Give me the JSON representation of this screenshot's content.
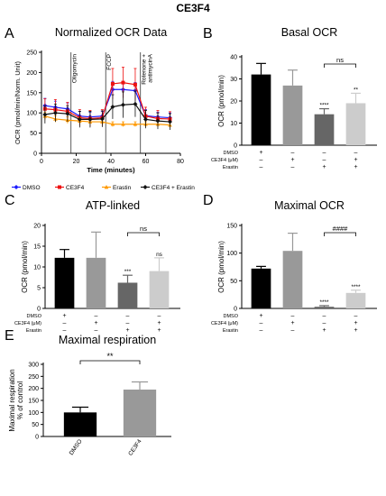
{
  "figure_title": "CE3F4",
  "colors": {
    "dmso": "#1a1aff",
    "ce3f4": "#ee1111",
    "erastin": "#ff9900",
    "combo": "#111111",
    "bar_dmso": "#000000",
    "bar_ce3f4": "#999999",
    "bar_erastin": "#666666",
    "bar_combo": "#cccccc"
  },
  "chart_data": [
    {
      "id": "A",
      "panel_letter": "A",
      "type": "line",
      "title": "Normalized OCR Data",
      "xlabel": "Time (minutes)",
      "ylabel": "OCR (pmol/min/Norm. Unit)",
      "xlim": [
        0,
        80
      ],
      "ylim": [
        0,
        250
      ],
      "xticks": [
        0,
        20,
        40,
        60,
        80
      ],
      "yticks": [
        0,
        50,
        100,
        150,
        200,
        250
      ],
      "injections": [
        {
          "label": "Oligomycin",
          "x": 17
        },
        {
          "label": "FCCP",
          "x": 37
        },
        {
          "label": "Rotenone + antimycinA",
          "x": 57
        }
      ],
      "x": [
        2,
        8,
        15,
        22,
        28,
        35,
        41,
        47,
        54,
        60,
        67,
        74
      ],
      "series": [
        {
          "name": "DMSO",
          "color_key": "dmso",
          "marker": "diamond",
          "values": [
            118,
            114,
            110,
            92,
            90,
            92,
            158,
            158,
            155,
            93,
            90,
            88
          ],
          "errors": [
            18,
            15,
            15,
            12,
            12,
            12,
            20,
            20,
            20,
            15,
            12,
            12
          ]
        },
        {
          "name": "CE3F4",
          "color_key": "ce3f4",
          "marker": "square",
          "values": [
            110,
            108,
            104,
            88,
            86,
            88,
            172,
            175,
            170,
            92,
            86,
            85
          ],
          "errors": [
            25,
            25,
            22,
            20,
            20,
            20,
            38,
            38,
            40,
            22,
            20,
            18
          ]
        },
        {
          "name": "Erastin",
          "color_key": "erastin",
          "marker": "triangle",
          "values": [
            92,
            85,
            82,
            80,
            78,
            78,
            72,
            72,
            72,
            72,
            72,
            70
          ],
          "errors": [
            10,
            8,
            8,
            8,
            8,
            8,
            6,
            6,
            6,
            6,
            6,
            6
          ]
        },
        {
          "name": "CE3F4 + Erastin",
          "color_key": "combo",
          "marker": "diamond",
          "values": [
            96,
            100,
            98,
            84,
            84,
            85,
            115,
            120,
            122,
            84,
            80,
            78
          ],
          "errors": [
            22,
            22,
            20,
            20,
            20,
            20,
            30,
            32,
            32,
            22,
            20,
            20
          ]
        }
      ]
    },
    {
      "id": "B",
      "panel_letter": "B",
      "type": "bar",
      "title": "Basal OCR",
      "ylabel": "OCR (pmol/min)",
      "ylim": [
        0,
        40
      ],
      "yticks": [
        0,
        10,
        20,
        30,
        40
      ],
      "categories": [
        "DMSO",
        "CE3F4",
        "Erastin",
        "CE3F4 + Erastin"
      ],
      "values": [
        32,
        27,
        14,
        19
      ],
      "errors": [
        5,
        7,
        2.5,
        4.5
      ],
      "bar_color_keys": [
        "bar_dmso",
        "bar_ce3f4",
        "bar_erastin",
        "bar_combo"
      ],
      "annotations": [
        "",
        "",
        "****",
        "**"
      ],
      "bracket": {
        "from": 2,
        "to": 3,
        "label": "ns"
      },
      "treatment_table": {
        "rows": [
          {
            "label": "DMSO",
            "marks": [
              "+",
              "–",
              "–",
              "–"
            ]
          },
          {
            "label": "CE3F4 (μM)",
            "marks": [
              "–",
              "+",
              "–",
              "+"
            ]
          },
          {
            "label": "Erastin",
            "marks": [
              "–",
              "–",
              "+",
              "+"
            ]
          }
        ]
      }
    },
    {
      "id": "C",
      "panel_letter": "C",
      "type": "bar",
      "title": "ATP-linked",
      "ylabel": "OCR (pmol/min)",
      "ylim": [
        0,
        20
      ],
      "yticks": [
        0,
        5,
        10,
        15,
        20
      ],
      "categories": [
        "DMSO",
        "CE3F4",
        "Erastin",
        "CE3F4 + Erastin"
      ],
      "values": [
        12.2,
        12.2,
        6.2,
        9.0
      ],
      "errors": [
        2.0,
        6.2,
        1.8,
        3.2
      ],
      "bar_color_keys": [
        "bar_dmso",
        "bar_ce3f4",
        "bar_erastin",
        "bar_combo"
      ],
      "annotations": [
        "",
        "",
        "***",
        "ns"
      ],
      "bracket": {
        "from": 2,
        "to": 3,
        "label": "ns"
      },
      "treatment_table": {
        "rows": [
          {
            "label": "DMSO",
            "marks": [
              "+",
              "–",
              "–",
              "–"
            ]
          },
          {
            "label": "CE3F4 (μM)",
            "marks": [
              "–",
              "+",
              "–",
              "+"
            ]
          },
          {
            "label": "Erastin",
            "marks": [
              "–",
              "–",
              "+",
              "+"
            ]
          }
        ]
      }
    },
    {
      "id": "D",
      "panel_letter": "D",
      "type": "bar",
      "title": "Maximal OCR",
      "ylabel": "OCR (pmol/min)",
      "ylim": [
        0,
        150
      ],
      "yticks": [
        0,
        50,
        100,
        150
      ],
      "categories": [
        "DMSO",
        "CE3F4",
        "Erastin",
        "CE3F4 + Erastin"
      ],
      "values": [
        72,
        104,
        3,
        28
      ],
      "errors": [
        4,
        32,
        2,
        5
      ],
      "bar_color_keys": [
        "bar_dmso",
        "bar_ce3f4",
        "bar_erastin",
        "bar_combo"
      ],
      "annotations": [
        "",
        "",
        "****",
        "****"
      ],
      "bracket": {
        "from": 2,
        "to": 3,
        "label": "####"
      },
      "treatment_table": {
        "rows": [
          {
            "label": "DMSO",
            "marks": [
              "+",
              "–",
              "–",
              "–"
            ]
          },
          {
            "label": "CE3F4 (μM)",
            "marks": [
              "–",
              "+",
              "–",
              "+"
            ]
          },
          {
            "label": "Erastin",
            "marks": [
              "–",
              "–",
              "+",
              "+"
            ]
          }
        ]
      }
    },
    {
      "id": "E",
      "panel_letter": "E",
      "type": "bar",
      "title": "Maximal respiration",
      "ylabel": "Maximal respiration % of control",
      "ylabel_lines": [
        "Maximal respiration",
        "% of control"
      ],
      "ylim": [
        0,
        300
      ],
      "yticks": [
        0,
        50,
        100,
        150,
        200,
        250,
        300
      ],
      "categories": [
        "DMSO",
        "CE3F4"
      ],
      "values": [
        100,
        195
      ],
      "errors": [
        22,
        32
      ],
      "bar_color_keys": [
        "bar_dmso",
        "bar_ce3f4"
      ],
      "annotations": [
        "",
        ""
      ],
      "bracket": {
        "from": 0,
        "to": 1,
        "label": "**"
      }
    }
  ]
}
